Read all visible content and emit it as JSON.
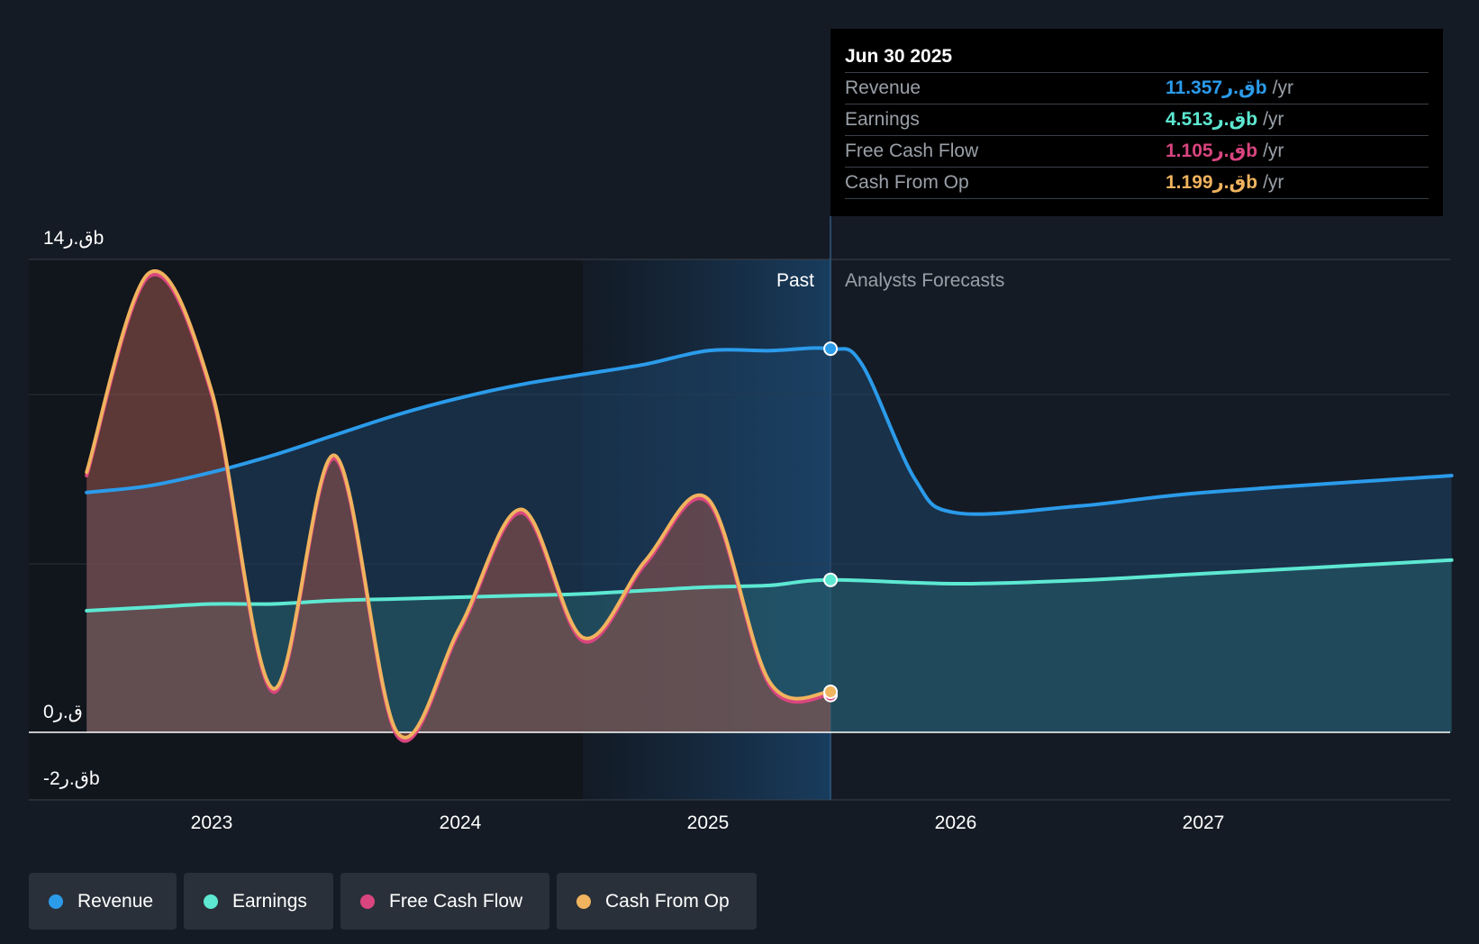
{
  "tooltip": {
    "date": "Jun 30 2025",
    "rows": [
      {
        "label": "Revenue",
        "value": "11.357ق.رb",
        "unit": "/yr",
        "color": "#2b9bea"
      },
      {
        "label": "Earnings",
        "value": "4.513ق.رb",
        "unit": "/yr",
        "color": "#5de8d2"
      },
      {
        "label": "Free Cash Flow",
        "value": "1.105ق.رb",
        "unit": "/yr",
        "color": "#d9457f"
      },
      {
        "label": "Cash From Op",
        "value": "1.199ق.رb",
        "unit": "/yr",
        "color": "#f0b35e"
      }
    ]
  },
  "regions": {
    "past": "Past",
    "forecast": "Analysts Forecasts"
  },
  "y_axis": {
    "top": "14ق.رb",
    "zero": "0ق.ر",
    "bottom": "-2ق.رb"
  },
  "legend": [
    {
      "label": "Revenue",
      "color": "#2b9bea"
    },
    {
      "label": "Earnings",
      "color": "#5de8d2"
    },
    {
      "label": "Free Cash Flow",
      "color": "#d9457f"
    },
    {
      "label": "Cash From Op",
      "color": "#f0b35e"
    }
  ],
  "chart_data": {
    "type": "line",
    "ylim": [
      -2,
      14
    ],
    "x_ticks": [
      "2023",
      "2024",
      "2025",
      "2026",
      "2027"
    ],
    "past_end": "2025-06-30",
    "series": [
      {
        "name": "Revenue",
        "color": "#2b9bea",
        "points": [
          [
            "2022-07-01",
            7.1
          ],
          [
            "2022-10-01",
            7.3
          ],
          [
            "2023-01-01",
            7.7
          ],
          [
            "2023-04-01",
            8.2
          ],
          [
            "2023-07-01",
            8.8
          ],
          [
            "2023-10-01",
            9.4
          ],
          [
            "2024-01-01",
            9.9
          ],
          [
            "2024-04-01",
            10.3
          ],
          [
            "2024-07-01",
            10.6
          ],
          [
            "2024-10-01",
            10.9
          ],
          [
            "2025-01-01",
            11.3
          ],
          [
            "2025-04-01",
            11.3
          ],
          [
            "2025-06-30",
            11.357
          ],
          [
            "2025-08-15",
            10.9
          ],
          [
            "2025-11-01",
            7.5
          ],
          [
            "2026-01-01",
            6.5
          ],
          [
            "2026-07-01",
            6.7
          ],
          [
            "2027-01-01",
            7.1
          ],
          [
            "2027-12-31",
            7.6
          ]
        ]
      },
      {
        "name": "Earnings",
        "color": "#5de8d2",
        "points": [
          [
            "2022-07-01",
            3.6
          ],
          [
            "2022-10-01",
            3.7
          ],
          [
            "2023-01-01",
            3.8
          ],
          [
            "2023-04-01",
            3.8
          ],
          [
            "2023-07-01",
            3.9
          ],
          [
            "2023-10-01",
            3.95
          ],
          [
            "2024-01-01",
            4.0
          ],
          [
            "2024-04-01",
            4.05
          ],
          [
            "2024-07-01",
            4.1
          ],
          [
            "2024-10-01",
            4.2
          ],
          [
            "2025-01-01",
            4.3
          ],
          [
            "2025-04-01",
            4.35
          ],
          [
            "2025-06-30",
            4.513
          ],
          [
            "2026-01-01",
            4.4
          ],
          [
            "2026-07-01",
            4.5
          ],
          [
            "2027-01-01",
            4.7
          ],
          [
            "2027-12-31",
            5.1
          ]
        ]
      },
      {
        "name": "Free Cash Flow",
        "color": "#d9457f",
        "points": [
          [
            "2022-07-01",
            7.6
          ],
          [
            "2022-10-01",
            13.5
          ],
          [
            "2023-01-01",
            10.0
          ],
          [
            "2023-04-01",
            1.2
          ],
          [
            "2023-07-01",
            8.1
          ],
          [
            "2023-10-01",
            -0.1
          ],
          [
            "2024-01-01",
            3.0
          ],
          [
            "2024-04-01",
            6.5
          ],
          [
            "2024-07-01",
            2.7
          ],
          [
            "2024-10-01",
            5.0
          ],
          [
            "2025-01-01",
            6.8
          ],
          [
            "2025-04-01",
            1.4
          ],
          [
            "2025-06-30",
            1.105
          ]
        ]
      },
      {
        "name": "Cash From Op",
        "color": "#f0b35e",
        "points": [
          [
            "2022-07-01",
            7.7
          ],
          [
            "2022-10-01",
            13.6
          ],
          [
            "2023-01-01",
            10.1
          ],
          [
            "2023-04-01",
            1.3
          ],
          [
            "2023-07-01",
            8.2
          ],
          [
            "2023-10-01",
            0.0
          ],
          [
            "2024-01-01",
            3.1
          ],
          [
            "2024-04-01",
            6.6
          ],
          [
            "2024-07-01",
            2.8
          ],
          [
            "2024-10-01",
            5.1
          ],
          [
            "2025-01-01",
            6.9
          ],
          [
            "2025-04-01",
            1.5
          ],
          [
            "2025-06-30",
            1.199
          ]
        ]
      }
    ]
  }
}
